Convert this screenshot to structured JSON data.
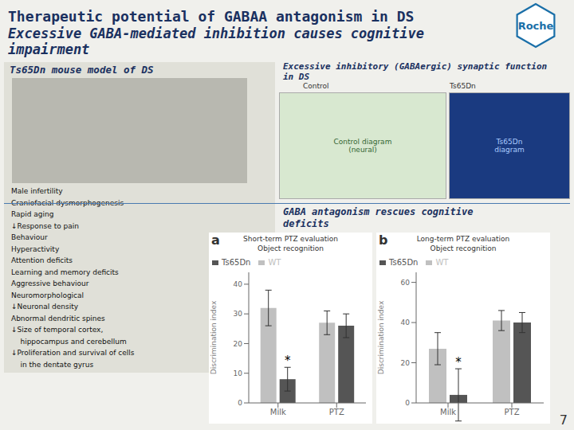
{
  "title": "Therapeutic potential of GABAA antagonism in DS",
  "annotations": [
    "Excessive GABA‑mediated inhibition causes cognitive",
    "impairment",
    "Roche",
    "Ts65Dn mouse model of DS",
    "Excessive inhibitory (GABAergic) synaptic function",
    "in DS",
    "Control",
    "Control diagram\n(neural)",
    "Ts65Dn",
    "Ts65Dn\ndiagram",
    "GABA antagonism rescues cognitive",
    "deficits",
    "7",
    "Male infertility",
    "Craniofacial dysmorphogenesis",
    "Rapid aging",
    "↓Response to pain",
    "Behaviour",
    "Hyperactivity",
    "Attention deficits",
    "Learning and memory deficits",
    "Aggressive behaviour",
    "Neuromorphological",
    "↓Neuronal density",
    "Abnormal dendritic spines",
    "↓Size of temporal cortex,",
    "    hippocampus and cerebellum",
    "↓Proliferation and survival of cells",
    "    in the dentate gyrus"
  ],
  "chart_data": [
    {
      "type": "bar",
      "title": "Short-term PTZ evaluation",
      "subtitle": "Object recognition",
      "categories": [
        "Milk",
        "PTZ"
      ],
      "series": [
        {
          "name": "WT",
          "color": "#c0c0c0",
          "values": [
            32,
            27
          ],
          "errors": [
            6,
            4
          ]
        },
        {
          "name": "Ts65Dn",
          "color": "#555555",
          "values": [
            8,
            26
          ],
          "errors": [
            4,
            4
          ]
        }
      ],
      "y_label": "Discrimination index",
      "ylim": [
        0,
        44
      ],
      "yticks": [
        0,
        10,
        20,
        30,
        40
      ],
      "legend": "upper left",
      "grid": false,
      "annotations": [
        {
          "text": "a"
        },
        {
          "text": "*",
          "category": "Milk",
          "series": "Ts65Dn"
        }
      ]
    },
    {
      "type": "bar",
      "title": "Long-term PTZ evaluation",
      "subtitle": "Object recognition",
      "categories": [
        "Milk",
        "PTZ"
      ],
      "series": [
        {
          "name": "WT",
          "color": "#c0c0c0",
          "values": [
            27,
            41
          ],
          "errors": [
            8,
            5
          ]
        },
        {
          "name": "Ts65Dn",
          "color": "#555555",
          "values": [
            4,
            40
          ],
          "errors": [
            13,
            5
          ]
        }
      ],
      "y_label": "Discrimination index",
      "ylim": [
        0,
        65
      ],
      "yticks": [
        0,
        20,
        40,
        60
      ],
      "legend": "upper left",
      "grid": false,
      "annotations": [
        {
          "text": "b"
        },
        {
          "text": "*",
          "category": "Milk",
          "series": "Ts65Dn"
        }
      ]
    }
  ]
}
